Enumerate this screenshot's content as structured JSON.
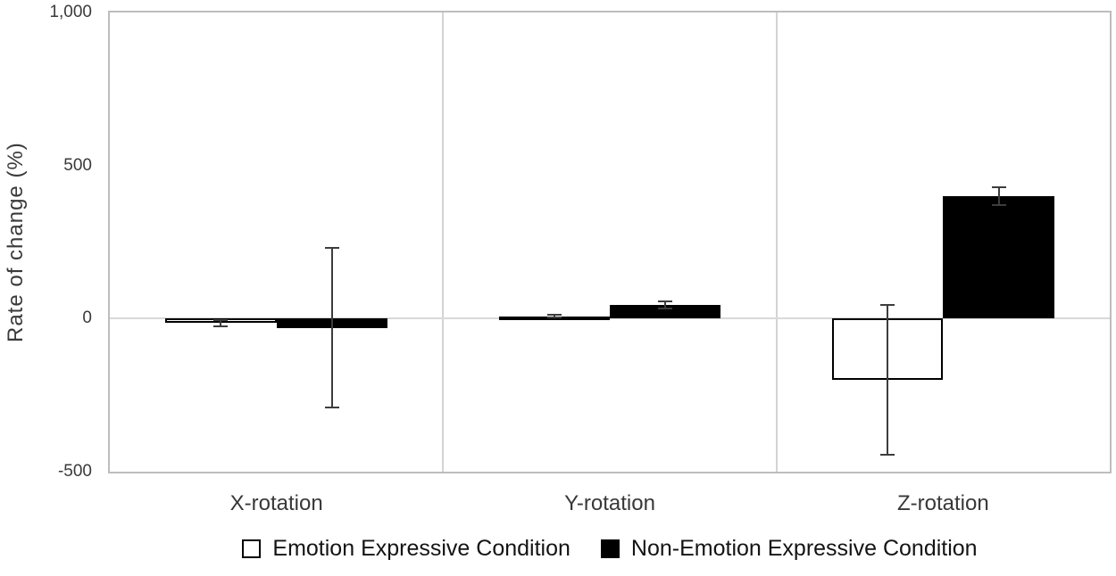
{
  "chart_data": {
    "type": "bar",
    "title": "",
    "xlabel": "",
    "ylabel": "Rate of change (%)",
    "categories": [
      "X-rotation",
      "Y-rotation",
      "Z-rotation"
    ],
    "series": [
      {
        "name": "Emotion Expressive Condition",
        "fill": "#ffffff",
        "border": "#000000",
        "values": [
          -15,
          8,
          -200
        ],
        "errors": [
          10,
          5,
          245
        ]
      },
      {
        "name": "Non-Emotion Expressive Condition",
        "fill": "#000000",
        "border": "#000000",
        "values": [
          -30,
          45,
          400
        ],
        "errors": [
          260,
          12,
          28
        ]
      }
    ],
    "ylim": [
      -500,
      1000
    ],
    "yticks": [
      {
        "value": 1000,
        "label": "1,000"
      },
      {
        "value": 500,
        "label": "500"
      },
      {
        "value": 0,
        "label": "0"
      },
      {
        "value": -500,
        "label": "-500"
      }
    ],
    "grid": {
      "horizontal_gridlines": false,
      "zero_line": true,
      "vertical_panel_dividers": true
    },
    "error_bars": true,
    "legend_position": "bottom-center"
  },
  "colors": {
    "background": "#ffffff",
    "text": "#3a3a3a",
    "category_text": "#383838",
    "legend_text": "#141414",
    "frame_border": "#bdbdbd",
    "panel_divider": "#d4d4d4",
    "zero_line": "#d9d9d9",
    "error_bar": "#3d3d3d"
  }
}
